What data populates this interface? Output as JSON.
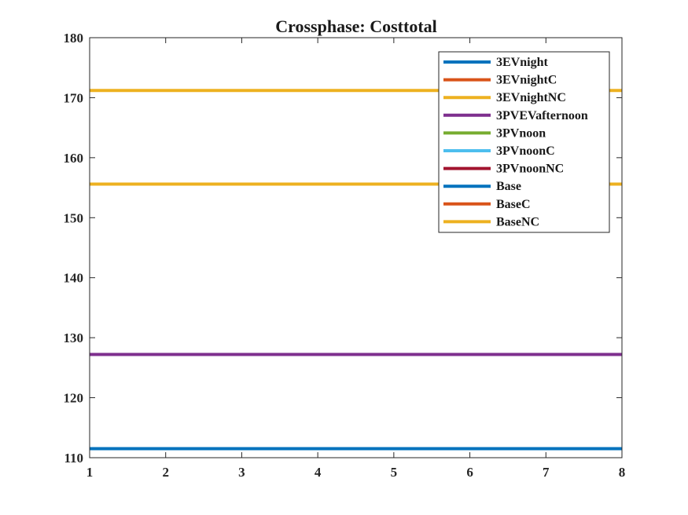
{
  "chart_data": {
    "type": "line",
    "title": "Crossphase: Costtotal",
    "xlabel": "",
    "ylabel": "",
    "xlim": [
      1,
      8
    ],
    "ylim": [
      110,
      180
    ],
    "x": [
      1,
      2,
      3,
      4,
      5,
      6,
      7,
      8
    ],
    "xticks": [
      "1",
      "2",
      "3",
      "4",
      "5",
      "6",
      "7",
      "8"
    ],
    "yticks": [
      "110",
      "120",
      "130",
      "140",
      "150",
      "160",
      "170",
      "180"
    ],
    "grid": false,
    "legend_position": "top-right",
    "series": [
      {
        "name": "3EVnight",
        "color": "#0072BD",
        "values": [
          111.5,
          111.5,
          111.5,
          111.5,
          111.5,
          111.5,
          111.5,
          111.5
        ]
      },
      {
        "name": "3EVnightC",
        "color": "#D95319",
        "values": [
          155.6,
          155.6,
          155.6,
          155.6,
          155.6,
          155.6,
          155.6,
          155.6
        ]
      },
      {
        "name": "3EVnightNC",
        "color": "#EDB120",
        "values": [
          171.2,
          171.2,
          171.2,
          171.2,
          171.2,
          171.2,
          171.2,
          171.2
        ]
      },
      {
        "name": "3PVEVafternoon",
        "color": "#7E2F8E",
        "values": [
          127.2,
          127.2,
          127.2,
          127.2,
          127.2,
          127.2,
          127.2,
          127.2
        ]
      },
      {
        "name": "3PVnoon",
        "color": "#77AC30",
        "values": [
          111.5,
          111.5,
          111.5,
          111.5,
          111.5,
          111.5,
          111.5,
          111.5
        ]
      },
      {
        "name": "3PVnoonC",
        "color": "#4DBEEE",
        "values": [
          111.5,
          111.5,
          111.5,
          111.5,
          111.5,
          111.5,
          111.5,
          111.5
        ]
      },
      {
        "name": "3PVnoonNC",
        "color": "#A2142F",
        "values": [
          111.5,
          111.5,
          111.5,
          111.5,
          111.5,
          111.5,
          111.5,
          111.5
        ]
      },
      {
        "name": "Base",
        "color": "#0072BD",
        "values": [
          111.5,
          111.5,
          111.5,
          111.5,
          111.5,
          111.5,
          111.5,
          111.5
        ]
      },
      {
        "name": "BaseC",
        "color": "#D95319",
        "values": [
          155.6,
          155.6,
          155.6,
          155.6,
          155.6,
          155.6,
          155.6,
          155.6
        ]
      },
      {
        "name": "BaseNC",
        "color": "#EDB120",
        "values": [
          155.6,
          155.6,
          155.6,
          155.6,
          155.6,
          155.6,
          155.6,
          155.6
        ]
      }
    ]
  }
}
